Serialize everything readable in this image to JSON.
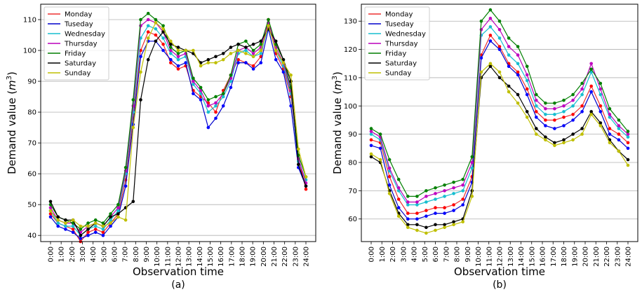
{
  "chart_data": [
    {
      "type": "line",
      "panel_label": "(a)",
      "xlabel": "Observation time",
      "ylabel_main": "Demand value (",
      "ylabel_italic": "m",
      "ylabel_sup": "3",
      "ylabel_close": ")",
      "ylim": [
        38,
        115
      ],
      "yticks": [
        40,
        50,
        60,
        70,
        80,
        90,
        100,
        110
      ],
      "x_tick_labels": [
        "0:00",
        "1:00",
        "2:00",
        "3:00",
        "4:00",
        "5:00",
        "6:00",
        "7:00",
        "8:00",
        "9:00",
        "10:00",
        "11:00",
        "12:00",
        "13:00",
        "14:00",
        "15:00",
        "16:00",
        "17:00",
        "18:00",
        "19:00",
        "20:00",
        "21:00",
        "22:00",
        "23:00",
        "24:00"
      ],
      "legend_position": "top-left",
      "series": [
        {
          "name": "Monday",
          "color": "#ee3030",
          "marker": "#ff0000",
          "values": [
            47,
            44,
            43,
            42,
            38,
            41,
            42,
            41,
            44,
            47,
            58,
            78,
            100,
            106,
            105,
            102,
            96,
            94,
            95,
            87,
            85,
            83,
            80,
            87,
            92,
            97,
            96,
            95,
            98,
            110,
            99,
            94,
            85,
            65,
            55
          ]
        },
        {
          "name": "Tuseday",
          "color": "#0000cc",
          "marker": "#0000ff",
          "values": [
            46,
            43,
            42,
            41,
            39,
            40,
            41,
            40,
            43,
            46,
            56,
            76,
            98,
            103,
            103,
            100,
            97,
            95,
            96,
            86,
            84,
            75,
            78,
            82,
            88,
            96,
            96,
            94,
            96,
            107,
            97,
            93,
            82,
            62,
            56
          ]
        },
        {
          "name": "Wednesday",
          "color": "#17becf",
          "marker": "#17becf",
          "values": [
            48,
            44,
            43,
            43,
            40,
            42,
            43,
            42,
            45,
            48,
            60,
            80,
            104,
            108,
            107,
            104,
            99,
            97,
            98,
            89,
            86,
            80,
            82,
            85,
            90,
            99,
            100,
            98,
            99,
            108,
            100,
            95,
            86,
            64,
            58
          ]
        },
        {
          "name": "Thursday",
          "color": "#bb00bb",
          "marker": "#bf00bf",
          "values": [
            49,
            45,
            44,
            44,
            41,
            43,
            44,
            43,
            46,
            49,
            61,
            82,
            108,
            110,
            109,
            106,
            100,
            98,
            99,
            90,
            87,
            82,
            83,
            86,
            91,
            100,
            101,
            99,
            101,
            109,
            101,
            96,
            87,
            65,
            57
          ]
        },
        {
          "name": "Friday",
          "color": "#007f00",
          "marker": "#008000",
          "values": [
            50,
            46,
            45,
            44,
            42,
            44,
            45,
            44,
            47,
            50,
            62,
            84,
            110,
            112,
            110,
            108,
            101,
            99,
            100,
            91,
            88,
            84,
            85,
            86,
            92,
            102,
            103,
            100,
            102,
            110,
            102,
            97,
            88,
            66,
            59
          ]
        },
        {
          "name": "Saturday",
          "color": "#000000",
          "marker": "#000000",
          "values": [
            51,
            46,
            45,
            45,
            40,
            42,
            44,
            43,
            46,
            47,
            49,
            51,
            84,
            97,
            103,
            106,
            102,
            101,
            100,
            99,
            96,
            97,
            98,
            99,
            101,
            102,
            101,
            102,
            103,
            107,
            103,
            97,
            90,
            63,
            56
          ]
        },
        {
          "name": "Sunday",
          "color": "#bfbf00",
          "marker": "#bfbf00",
          "values": [
            48,
            45,
            44,
            45,
            43,
            43,
            44,
            43,
            44,
            46,
            45,
            75,
            93,
            104,
            109,
            107,
            103,
            100,
            100,
            100,
            95,
            96,
            96,
            97,
            99,
            100,
            99,
            98,
            100,
            108,
            100,
            96,
            92,
            68,
            59
          ]
        }
      ]
    },
    {
      "type": "line",
      "panel_label": "(b)",
      "xlabel": "Observation time",
      "ylabel_main": "Demand value (",
      "ylabel_italic": "m",
      "ylabel_sup": "3",
      "ylabel_close": ")",
      "ylim": [
        52,
        136
      ],
      "yticks": [
        50,
        60,
        70,
        80,
        90,
        100,
        110,
        120,
        130
      ],
      "x_tick_labels": [
        "0:00",
        "1:00",
        "2:00",
        "3:00",
        "4:00",
        "5:00",
        "6:00",
        "7:00",
        "8:00",
        "9:00",
        "10:00",
        "11:00",
        "12:00",
        "13:00",
        "14:00",
        "15:00",
        "16:00",
        "17:00",
        "18:00",
        "19:00",
        "20:00",
        "21:00",
        "22:00",
        "23:00",
        "24:00"
      ],
      "legend_position": "top-left",
      "series": [
        {
          "name": "Monday",
          "color": "#ee3030",
          "marker": "#ff0000",
          "values": [
            88,
            87,
            75,
            67,
            62,
            62,
            63,
            64,
            64,
            65,
            67,
            75,
            118,
            125,
            121,
            115,
            112,
            106,
            98,
            95,
            95,
            96,
            97,
            100,
            107,
            100,
            92,
            90,
            87
          ]
        },
        {
          "name": "Tuseday",
          "color": "#0000cc",
          "marker": "#0000ff",
          "values": [
            86,
            85,
            72,
            64,
            60,
            60,
            61,
            62,
            62,
            63,
            65,
            73,
            117,
            123,
            120,
            114,
            111,
            104,
            96,
            93,
            92,
            93,
            95,
            98,
            105,
            98,
            90,
            88,
            85
          ]
        },
        {
          "name": "Wednesday",
          "color": "#17becf",
          "marker": "#17becf",
          "values": [
            90,
            88,
            77,
            70,
            65,
            65,
            66,
            67,
            68,
            69,
            70,
            78,
            125,
            128,
            124,
            118,
            115,
            109,
            100,
            97,
            97,
            98,
            100,
            104,
            112,
            104,
            96,
            92,
            89
          ]
        },
        {
          "name": "Thursday",
          "color": "#bb00bb",
          "marker": "#bf00bf",
          "values": [
            91,
            89,
            78,
            71,
            66,
            66,
            68,
            69,
            70,
            71,
            72,
            80,
            127,
            131,
            127,
            121,
            118,
            111,
            102,
            99,
            99,
            100,
            102,
            106,
            115,
            106,
            97,
            93,
            90
          ]
        },
        {
          "name": "Friday",
          "color": "#007f00",
          "marker": "#008000",
          "values": [
            92,
            90,
            81,
            74,
            68,
            68,
            70,
            71,
            72,
            73,
            74,
            82,
            130,
            134,
            130,
            124,
            121,
            114,
            104,
            101,
            101,
            102,
            104,
            108,
            113,
            108,
            99,
            95,
            91
          ]
        },
        {
          "name": "Saturday",
          "color": "#000000",
          "marker": "#000000",
          "values": [
            82,
            80,
            70,
            62,
            58,
            58,
            57,
            58,
            58,
            59,
            60,
            70,
            110,
            114,
            110,
            107,
            104,
            98,
            92,
            89,
            87,
            88,
            90,
            92,
            98,
            94,
            88,
            84,
            81
          ]
        },
        {
          "name": "Sunday",
          "color": "#bfbf00",
          "marker": "#bfbf00",
          "values": [
            83,
            81,
            69,
            61,
            57,
            56,
            55,
            56,
            57,
            58,
            59,
            68,
            112,
            115,
            112,
            105,
            101,
            96,
            90,
            88,
            86,
            87,
            88,
            90,
            97,
            93,
            87,
            84,
            79
          ]
        }
      ]
    }
  ]
}
